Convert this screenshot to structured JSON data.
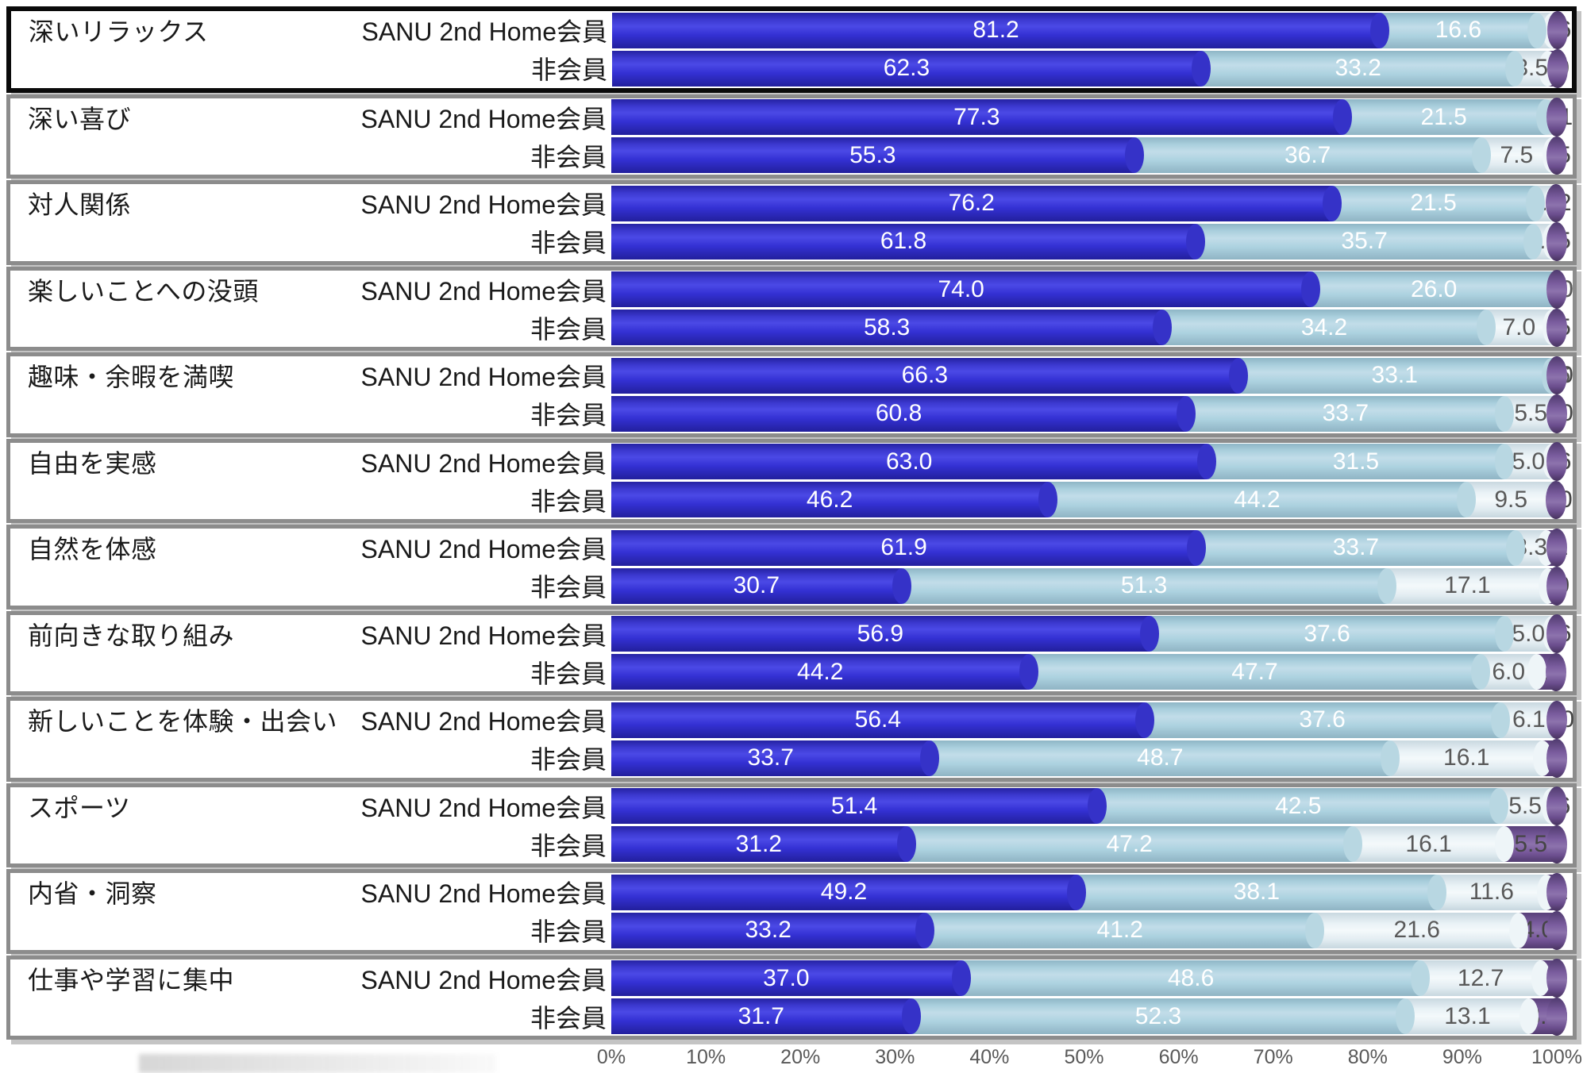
{
  "chart_data": {
    "type": "bar",
    "orientation": "horizontal-stacked-3d",
    "grid": false,
    "legend_position": "none",
    "xlim": [
      0,
      100
    ],
    "x_ticks": [
      "0%",
      "10%",
      "20%",
      "30%",
      "40%",
      "50%",
      "60%",
      "70%",
      "80%",
      "90%",
      "100%"
    ],
    "group_labels": [
      "SANU 2nd Home会員",
      "非会員"
    ],
    "segment_names": [
      "strongly-agree",
      "agree",
      "slightly-disagree",
      "disagree"
    ],
    "segment_colors": [
      "#3431d4",
      "#add2e0",
      "#e9f2f6",
      "#7a5c9e"
    ],
    "rows": [
      {
        "category": "深いリラックス",
        "highlight": true,
        "bars": [
          {
            "label": "SANU 2nd Home会員",
            "values": [
              81.2,
              16.6,
              1.6,
              0.6
            ]
          },
          {
            "label": "非会員",
            "values": [
              62.3,
              33.2,
              3.5,
              1.0
            ]
          }
        ]
      },
      {
        "category": "深い喜び",
        "highlight": false,
        "bars": [
          {
            "label": "SANU 2nd Home会員",
            "values": [
              77.3,
              21.5,
              1.1,
              0.1
            ]
          },
          {
            "label": "非会員",
            "values": [
              55.3,
              36.7,
              7.5,
              0.5
            ]
          }
        ]
      },
      {
        "category": "対人関係",
        "highlight": false,
        "bars": [
          {
            "label": "SANU 2nd Home会員",
            "values": [
              76.2,
              21.5,
              2.0,
              0.2
            ]
          },
          {
            "label": "非会員",
            "values": [
              61.8,
              35.7,
              2.0,
              0.5
            ]
          }
        ]
      },
      {
        "category": "楽しいことへの没頭",
        "highlight": false,
        "bars": [
          {
            "label": "SANU 2nd Home会員",
            "values": [
              74.0,
              26.0,
              0.0,
              0.0
            ]
          },
          {
            "label": "非会員",
            "values": [
              58.3,
              34.2,
              7.0,
              0.5
            ]
          }
        ]
      },
      {
        "category": "趣味・余暇を満喫",
        "highlight": false,
        "bars": [
          {
            "label": "SANU 2nd Home会員",
            "values": [
              66.3,
              33.1,
              0.6,
              0.0
            ]
          },
          {
            "label": "非会員",
            "values": [
              60.8,
              33.7,
              5.5,
              0.0
            ]
          }
        ]
      },
      {
        "category": "自由を実感",
        "highlight": false,
        "bars": [
          {
            "label": "SANU 2nd Home会員",
            "values": [
              63.0,
              31.5,
              5.0,
              0.6
            ]
          },
          {
            "label": "非会員",
            "values": [
              46.2,
              44.2,
              9.5,
              0.0
            ]
          }
        ]
      },
      {
        "category": "自然を体感",
        "highlight": false,
        "bars": [
          {
            "label": "SANU 2nd Home会員",
            "values": [
              61.9,
              33.7,
              3.3,
              1.1
            ]
          },
          {
            "label": "非会員",
            "values": [
              30.7,
              51.3,
              17.1,
              1.0
            ]
          }
        ]
      },
      {
        "category": "前向きな取り組み",
        "highlight": false,
        "bars": [
          {
            "label": "SANU 2nd Home会員",
            "values": [
              56.9,
              37.6,
              5.0,
              0.6
            ]
          },
          {
            "label": "非会員",
            "values": [
              44.2,
              47.7,
              6.0,
              2.0
            ]
          }
        ]
      },
      {
        "category": "新しいことを体験・出会い",
        "highlight": false,
        "bars": [
          {
            "label": "SANU 2nd Home会員",
            "values": [
              56.4,
              37.6,
              6.1,
              0.0
            ]
          },
          {
            "label": "非会員",
            "values": [
              33.7,
              48.7,
              16.1,
              1.5
            ]
          }
        ]
      },
      {
        "category": "スポーツ",
        "highlight": false,
        "bars": [
          {
            "label": "SANU 2nd Home会員",
            "values": [
              51.4,
              42.5,
              5.5,
              0.6
            ]
          },
          {
            "label": "非会員",
            "values": [
              31.2,
              47.2,
              16.1,
              5.5
            ]
          }
        ]
      },
      {
        "category": "内省・洞察",
        "highlight": false,
        "bars": [
          {
            "label": "SANU 2nd Home会員",
            "values": [
              49.2,
              38.1,
              11.6,
              1.1
            ]
          },
          {
            "label": "非会員",
            "values": [
              33.2,
              41.2,
              21.6,
              4.0
            ]
          }
        ]
      },
      {
        "category": "仕事や学習に集中",
        "highlight": false,
        "bars": [
          {
            "label": "SANU 2nd Home会員",
            "values": [
              37.0,
              48.6,
              12.7,
              1.7
            ]
          },
          {
            "label": "非会員",
            "values": [
              31.7,
              52.3,
              13.1,
              3.0
            ]
          }
        ]
      }
    ]
  },
  "colors": {
    "frame_default": "#8c8c8c",
    "frame_highlight": "#0a0a0a",
    "axis_text": "#595959",
    "bar_text_light": "#ffffff",
    "bar_text_dark": "#595959"
  }
}
